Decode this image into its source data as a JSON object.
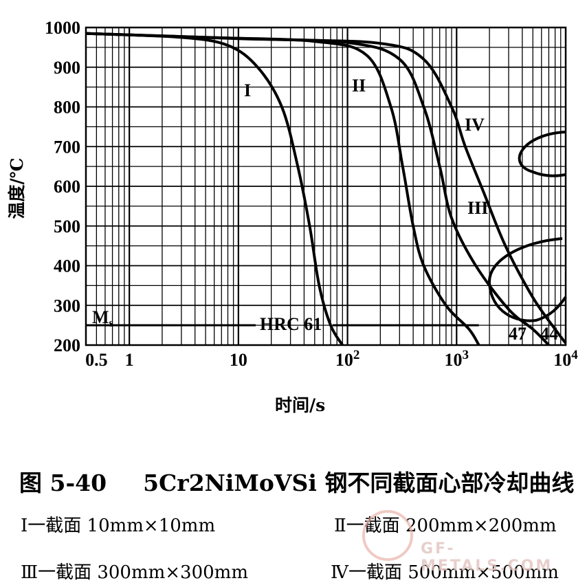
{
  "chart_data": {
    "type": "line",
    "x_scale": "log",
    "xlim": [
      0.4,
      10000
    ],
    "ylim": [
      200,
      1000
    ],
    "grid": true,
    "xlabel": "时间/s",
    "ylabel": "温度/℃",
    "x_ticks": [
      {
        "value": 0.5,
        "label": "0.5"
      },
      {
        "value": 1,
        "label": "1"
      },
      {
        "value": 10,
        "label": "10"
      },
      {
        "value": 100,
        "base": "10",
        "exp": "2"
      },
      {
        "value": 1000,
        "base": "10",
        "exp": "3"
      },
      {
        "value": 10000,
        "base": "10",
        "exp": "4"
      }
    ],
    "y_ticks": [
      "1000",
      "900",
      "800",
      "700",
      "600",
      "500",
      "400",
      "300",
      "200"
    ],
    "series": [
      {
        "name": "I",
        "points": [
          [
            0.4,
            985
          ],
          [
            3,
            975
          ],
          [
            8,
            955
          ],
          [
            15,
            900
          ],
          [
            25,
            800
          ],
          [
            35,
            650
          ],
          [
            45,
            500
          ],
          [
            55,
            350
          ],
          [
            70,
            250
          ],
          [
            90,
            200
          ]
        ]
      },
      {
        "name": "II",
        "points": [
          [
            0.4,
            985
          ],
          [
            5,
            975
          ],
          [
            50,
            965
          ],
          [
            150,
            930
          ],
          [
            250,
            800
          ],
          [
            320,
            650
          ],
          [
            400,
            500
          ],
          [
            500,
            400
          ],
          [
            800,
            300
          ],
          [
            1300,
            240
          ],
          [
            1600,
            200
          ]
        ]
      },
      {
        "name": "III",
        "points": [
          [
            0.4,
            985
          ],
          [
            10,
            972
          ],
          [
            100,
            962
          ],
          [
            300,
            920
          ],
          [
            500,
            800
          ],
          [
            700,
            650
          ],
          [
            900,
            520
          ],
          [
            1500,
            400
          ],
          [
            3000,
            290
          ],
          [
            5000,
            240
          ],
          [
            7000,
            200
          ]
        ]
      },
      {
        "name": "IV",
        "points": [
          [
            0.4,
            985
          ],
          [
            20,
            970
          ],
          [
            200,
            960
          ],
          [
            500,
            920
          ],
          [
            900,
            800
          ],
          [
            1200,
            700
          ],
          [
            1800,
            580
          ],
          [
            2800,
            450
          ],
          [
            5000,
            320
          ],
          [
            8000,
            240
          ],
          [
            10000,
            205
          ]
        ]
      }
    ],
    "annotations": {
      "ms_label": {
        "base": "M",
        "sub": "s"
      },
      "ms_temp": 250,
      "hrc_label": "HRC 61",
      "hardness_labels": [
        "47",
        "44"
      ]
    }
  },
  "caption": {
    "figure": "图 5-40",
    "text": "5Cr2NiMoVSi 钢不同截面心部冷却曲线"
  },
  "legend": [
    "Ⅰ一截面 10mm×10mm",
    "Ⅱ一截面 200mm×200mm",
    "Ⅲ一截面 300mm×300mm",
    "Ⅳ一截面 500mm×500mm"
  ],
  "watermark": {
    "text": "GF-METALS.COM"
  }
}
